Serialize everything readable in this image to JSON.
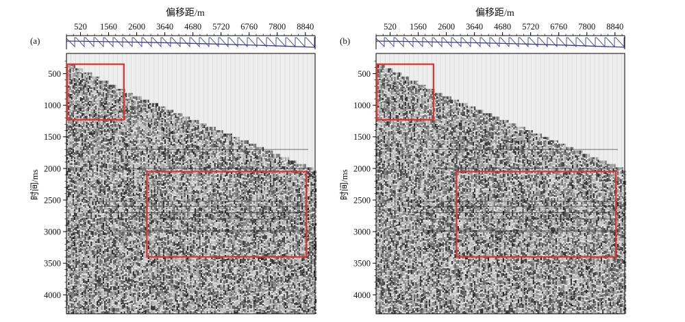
{
  "figure": {
    "xlabel": "偏移距/m",
    "ylabel": "时间/ms",
    "x_tick_labels": [
      "520",
      "1560",
      "2600",
      "3640",
      "4680",
      "5720",
      "6760",
      "7800",
      "8840"
    ],
    "y_tick_labels": [
      "500",
      "1000",
      "1500",
      "2000",
      "2500",
      "3000",
      "3500",
      "4000"
    ],
    "highlight_color": "#e0302a",
    "trace_line_color": "#3a3a8c"
  },
  "panels": [
    {
      "label": "(a)"
    },
    {
      "label": "(b)"
    }
  ],
  "chart_data": [
    {
      "type": "heatmap",
      "title": "",
      "xlabel": "偏移距/m",
      "ylabel": "时间/ms",
      "x_ticks": [
        520,
        1560,
        2600,
        3640,
        4680,
        5720,
        6760,
        7800,
        8840
      ],
      "y_ticks": [
        500,
        1000,
        1500,
        2000,
        2500,
        3000,
        3500,
        4000
      ],
      "xlim": [
        0,
        9200
      ],
      "ylim": [
        4300,
        180
      ],
      "first_break": {
        "offset_m": [
          0,
          2100,
          9200
        ],
        "time_ms": [
          350,
          800,
          2050
        ]
      },
      "highlight_boxes": [
        {
          "offset_m": [
            0,
            2100
          ],
          "time_ms": [
            350,
            1230
          ]
        },
        {
          "offset_m": [
            2950,
            8850
          ],
          "time_ms": [
            2050,
            3400
          ]
        }
      ],
      "panel": "(a)"
    },
    {
      "type": "heatmap",
      "title": "",
      "xlabel": "偏移距/m",
      "ylabel": "时间/ms",
      "x_ticks": [
        520,
        1560,
        2600,
        3640,
        4680,
        5720,
        6760,
        7800,
        8840
      ],
      "y_ticks": [
        500,
        1000,
        1500,
        2000,
        2500,
        3000,
        3500,
        4000
      ],
      "xlim": [
        0,
        9200
      ],
      "ylim": [
        4300,
        180
      ],
      "first_break": {
        "offset_m": [
          0,
          2100,
          9200
        ],
        "time_ms": [
          350,
          800,
          2050
        ]
      },
      "highlight_boxes": [
        {
          "offset_m": [
            0,
            2100
          ],
          "time_ms": [
            350,
            1230
          ]
        },
        {
          "offset_m": [
            2950,
            8850
          ],
          "time_ms": [
            2050,
            3400
          ]
        }
      ],
      "panel": "(b)"
    }
  ]
}
